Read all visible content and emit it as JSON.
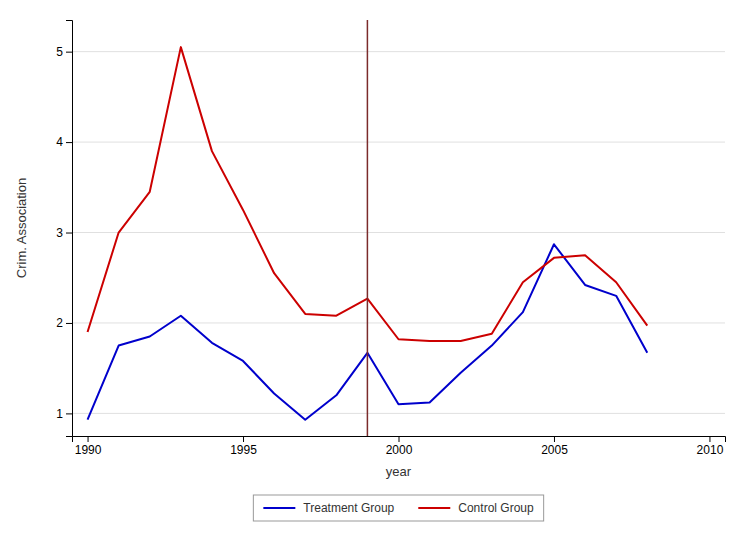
{
  "chart_data": {
    "type": "line",
    "xlabel": "year",
    "ylabel": "Crim. Association",
    "x": [
      1990,
      1991,
      1992,
      1993,
      1994,
      1995,
      1996,
      1997,
      1998,
      1999,
      2000,
      2001,
      2002,
      2003,
      2004,
      2005,
      2006,
      2007,
      2008
    ],
    "series": [
      {
        "name": "Treatment Group",
        "color": "#0000cc",
        "values": [
          0.93,
          1.75,
          1.85,
          2.08,
          1.78,
          1.58,
          1.22,
          0.93,
          1.2,
          1.67,
          1.1,
          1.12,
          1.45,
          1.75,
          2.12,
          2.87,
          2.42,
          2.3,
          1.67
        ]
      },
      {
        "name": "Control Group",
        "color": "#cc0000",
        "values": [
          1.9,
          3.0,
          3.45,
          5.05,
          3.9,
          3.25,
          2.55,
          2.1,
          2.08,
          2.27,
          1.82,
          1.8,
          1.8,
          1.88,
          2.45,
          2.72,
          2.75,
          2.45,
          1.97
        ]
      }
    ],
    "vline": {
      "x": 1999,
      "color": "#7b2b2b"
    },
    "xlim": [
      1989.5,
      2010.5
    ],
    "ylim": [
      0.75,
      5.35
    ],
    "xticks": [
      1990,
      1995,
      2000,
      2005,
      2010
    ],
    "yticks": [
      1,
      2,
      3,
      4,
      5
    ],
    "grid": true,
    "legend": "bottom"
  }
}
